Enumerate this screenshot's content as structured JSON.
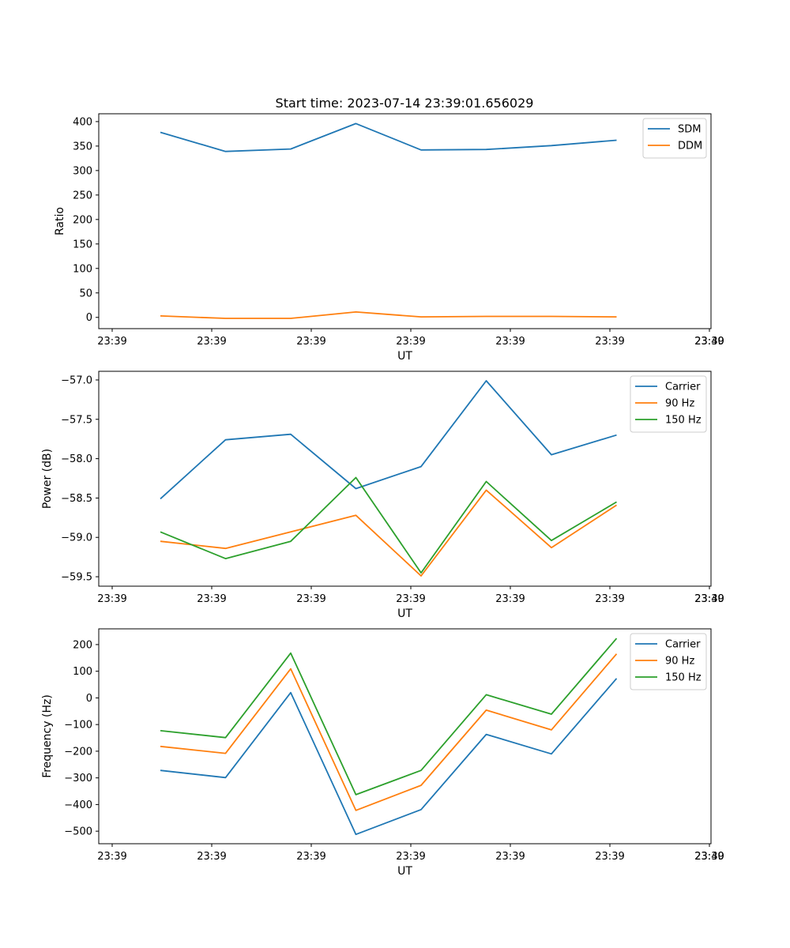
{
  "title": "Start time: 2023-07-14 23:39:01.656029",
  "colors": {
    "c0": "#1f77b4",
    "c1": "#ff7f0e",
    "c2": "#2ca02c"
  },
  "chart_data": [
    {
      "type": "line",
      "xlabel": "UT",
      "ylabel": "Ratio",
      "x_tick_labels": [
        "23:39",
        "23:39",
        "23:39",
        "23:39",
        "23:39",
        "23:39",
        "23:39"
      ],
      "x_tick_end_label": "23:40",
      "x": [
        0,
        1,
        2,
        3,
        4,
        5,
        6,
        7
      ],
      "xlim": [
        -0.75,
        8.4
      ],
      "ylim": [
        -23,
        416
      ],
      "y_ticks": [
        0,
        50,
        100,
        150,
        200,
        250,
        300,
        350,
        400
      ],
      "y_tick_labels": [
        "0",
        "50",
        "100",
        "150",
        "200",
        "250",
        "300",
        "350",
        "400"
      ],
      "legend_position": "top-right",
      "series": [
        {
          "name": "SDM",
          "color": "#1f77b4",
          "values": [
            378,
            339,
            344,
            396,
            342,
            343,
            351,
            362
          ]
        },
        {
          "name": "DDM",
          "color": "#ff7f0e",
          "values": [
            3,
            -2,
            -2,
            11,
            1,
            2,
            2,
            1
          ]
        }
      ]
    },
    {
      "type": "line",
      "xlabel": "UT",
      "ylabel": "Power (dB)",
      "x_tick_labels": [
        "23:39",
        "23:39",
        "23:39",
        "23:39",
        "23:39",
        "23:39",
        "23:39"
      ],
      "x_tick_end_label": "23:40",
      "x": [
        0,
        1,
        2,
        3,
        4,
        5,
        6,
        7
      ],
      "xlim": [
        -0.75,
        8.4
      ],
      "ylim": [
        -59.62,
        -56.89
      ],
      "y_ticks": [
        -59.5,
        -59.0,
        -58.5,
        -58.0,
        -57.5,
        -57.0
      ],
      "y_tick_labels": [
        "−59.5",
        "−59.0",
        "−58.5",
        "−58.0",
        "−57.5",
        "−57.0"
      ],
      "legend_position": "top-right",
      "series": [
        {
          "name": "Carrier",
          "color": "#1f77b4",
          "values": [
            -58.51,
            -57.76,
            -57.69,
            -58.38,
            -58.1,
            -57.01,
            -57.95,
            -57.7
          ]
        },
        {
          "name": "90 Hz",
          "color": "#ff7f0e",
          "values": [
            -59.05,
            -59.14,
            -58.93,
            -58.72,
            -59.49,
            -58.4,
            -59.13,
            -58.59
          ]
        },
        {
          "name": "150 Hz",
          "color": "#2ca02c",
          "values": [
            -58.93,
            -59.27,
            -59.05,
            -58.24,
            -59.45,
            -58.29,
            -59.04,
            -58.55
          ]
        }
      ]
    },
    {
      "type": "line",
      "xlabel": "UT",
      "ylabel": "Frequency (Hz)",
      "x_tick_labels": [
        "23:39",
        "23:39",
        "23:39",
        "23:39",
        "23:39",
        "23:39",
        "23:39"
      ],
      "x_tick_end_label": "23:40",
      "x": [
        0,
        1,
        2,
        3,
        4,
        5,
        6,
        7
      ],
      "xlim": [
        -0.75,
        8.4
      ],
      "ylim": [
        -547,
        259
      ],
      "y_ticks": [
        -500,
        -400,
        -300,
        -200,
        -100,
        0,
        100,
        200
      ],
      "y_tick_labels": [
        "−500",
        "−400",
        "−300",
        "−200",
        "−100",
        "0",
        "100",
        "200"
      ],
      "legend_position": "top-right",
      "series": [
        {
          "name": "Carrier",
          "color": "#1f77b4",
          "values": [
            -272,
            -299,
            20,
            -512,
            -419,
            -137,
            -210,
            73
          ]
        },
        {
          "name": "90 Hz",
          "color": "#ff7f0e",
          "values": [
            -182,
            -208,
            109,
            -422,
            -328,
            -46,
            -120,
            165
          ]
        },
        {
          "name": "150 Hz",
          "color": "#2ca02c",
          "values": [
            -123,
            -149,
            168,
            -363,
            -272,
            12,
            -61,
            223
          ]
        }
      ]
    }
  ]
}
